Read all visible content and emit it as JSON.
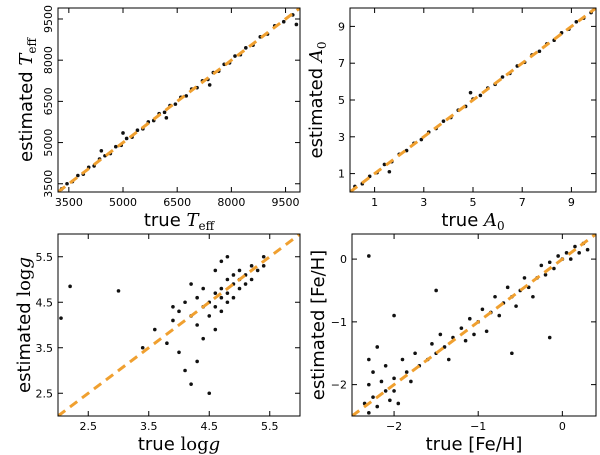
{
  "chart_data": [
    {
      "id": "teff",
      "type": "scatter",
      "xlabel": "true T_eff",
      "ylabel": "estimated T_eff",
      "xlabel_text": "true ",
      "ylabel_text": "estimated ",
      "var_symbol": "T",
      "var_sub": "eff",
      "xlim": [
        3200,
        9900
      ],
      "ylim": [
        3200,
        9900
      ],
      "xticks": [
        3500,
        5000,
        6500,
        8000,
        9500
      ],
      "yticks": [
        3500,
        5000,
        6500,
        8000,
        9500
      ],
      "xtick_labels": [
        "3500",
        "5000",
        "6500",
        "8000",
        "9500"
      ],
      "ytick_labels": [
        "3500",
        "5000",
        "6500",
        "8000",
        "9500"
      ],
      "one_to_one_line": true,
      "line_color": "#f0a030",
      "point_color": "#111111",
      "points": [
        [
          3300,
          3310
        ],
        [
          3450,
          3500
        ],
        [
          3600,
          3580
        ],
        [
          3750,
          3800
        ],
        [
          3900,
          3850
        ],
        [
          4050,
          4100
        ],
        [
          4200,
          4150
        ],
        [
          4350,
          4400
        ],
        [
          4500,
          4520
        ],
        [
          4650,
          4600
        ],
        [
          4800,
          4850
        ],
        [
          4950,
          4900
        ],
        [
          5100,
          5150
        ],
        [
          5250,
          5200
        ],
        [
          5400,
          5450
        ],
        [
          5550,
          5500
        ],
        [
          5700,
          5750
        ],
        [
          5850,
          5800
        ],
        [
          6000,
          6050
        ],
        [
          6150,
          6100
        ],
        [
          6300,
          6350
        ],
        [
          6450,
          6400
        ],
        [
          6600,
          6650
        ],
        [
          6750,
          6700
        ],
        [
          6900,
          6950
        ],
        [
          7050,
          7000
        ],
        [
          7200,
          7250
        ],
        [
          7350,
          7300
        ],
        [
          7500,
          7550
        ],
        [
          7650,
          7600
        ],
        [
          7800,
          7850
        ],
        [
          7950,
          7900
        ],
        [
          8100,
          8150
        ],
        [
          8250,
          8200
        ],
        [
          8400,
          8450
        ],
        [
          8600,
          8550
        ],
        [
          8800,
          8850
        ],
        [
          9000,
          8950
        ],
        [
          9200,
          9250
        ],
        [
          9450,
          9400
        ],
        [
          9700,
          9650
        ],
        [
          9800,
          9300
        ],
        [
          5000,
          5350
        ],
        [
          6200,
          5900
        ],
        [
          4400,
          4700
        ],
        [
          7400,
          7100
        ]
      ]
    },
    {
      "id": "a0",
      "type": "scatter",
      "xlabel": "true A_0",
      "ylabel": "estimated A_0",
      "xlabel_text": "true ",
      "ylabel_text": "estimated ",
      "var_symbol": "A",
      "var_sub": "0",
      "xlim": [
        0,
        10
      ],
      "ylim": [
        0,
        10
      ],
      "xticks": [
        1,
        3,
        5,
        7,
        9
      ],
      "yticks": [
        1,
        3,
        5,
        7,
        9
      ],
      "xtick_labels": [
        "1",
        "3",
        "5",
        "7",
        "9"
      ],
      "ytick_labels": [
        "1",
        "3",
        "5",
        "7",
        "9"
      ],
      "one_to_one_line": true,
      "line_color": "#f0a030",
      "point_color": "#111111",
      "points": [
        [
          0.2,
          0.3
        ],
        [
          0.5,
          0.45
        ],
        [
          0.8,
          0.85
        ],
        [
          1.1,
          1.05
        ],
        [
          1.4,
          1.5
        ],
        [
          1.7,
          1.65
        ],
        [
          2.0,
          2.05
        ],
        [
          2.3,
          2.25
        ],
        [
          2.6,
          2.65
        ],
        [
          2.9,
          2.85
        ],
        [
          3.2,
          3.25
        ],
        [
          3.5,
          3.45
        ],
        [
          3.8,
          3.85
        ],
        [
          4.1,
          4.05
        ],
        [
          4.4,
          4.45
        ],
        [
          4.7,
          4.65
        ],
        [
          5.0,
          5.05
        ],
        [
          5.3,
          5.25
        ],
        [
          5.6,
          5.65
        ],
        [
          5.9,
          5.85
        ],
        [
          6.2,
          6.25
        ],
        [
          6.5,
          6.45
        ],
        [
          6.8,
          6.85
        ],
        [
          7.1,
          7.05
        ],
        [
          7.4,
          7.45
        ],
        [
          7.7,
          7.65
        ],
        [
          8.0,
          8.05
        ],
        [
          8.3,
          8.25
        ],
        [
          8.6,
          8.65
        ],
        [
          8.9,
          8.85
        ],
        [
          9.2,
          9.25
        ],
        [
          9.5,
          9.45
        ],
        [
          9.8,
          9.75
        ],
        [
          1.6,
          1.1
        ],
        [
          4.9,
          5.4
        ]
      ]
    },
    {
      "id": "logg",
      "type": "scatter",
      "xlabel": "true log g",
      "ylabel": "estimated log g",
      "xlabel_text": "true ",
      "ylabel_text": "estimated ",
      "var_symbol": "log",
      "var_sub": "g",
      "xlim": [
        2.0,
        6.0
      ],
      "ylim": [
        2.0,
        6.0
      ],
      "xticks": [
        2.5,
        3.5,
        4.5,
        5.5
      ],
      "yticks": [
        2.5,
        3.5,
        4.5,
        5.5
      ],
      "xtick_labels": [
        "2.5",
        "3.5",
        "4.5",
        "5.5"
      ],
      "ytick_labels": [
        "2.5",
        "3.5",
        "4.5",
        "5.5"
      ],
      "one_to_one_line": true,
      "line_color": "#f0a030",
      "point_color": "#111111",
      "points": [
        [
          2.05,
          4.15
        ],
        [
          2.2,
          4.85
        ],
        [
          3.0,
          4.75
        ],
        [
          3.4,
          3.5
        ],
        [
          3.6,
          3.9
        ],
        [
          3.8,
          3.6
        ],
        [
          3.9,
          4.1
        ],
        [
          4.0,
          4.3
        ],
        [
          4.0,
          3.4
        ],
        [
          4.1,
          4.5
        ],
        [
          4.1,
          3.0
        ],
        [
          4.2,
          4.2
        ],
        [
          4.2,
          2.7
        ],
        [
          4.3,
          4.6
        ],
        [
          4.3,
          4.0
        ],
        [
          4.3,
          3.2
        ],
        [
          4.4,
          4.8
        ],
        [
          4.4,
          4.4
        ],
        [
          4.4,
          3.7
        ],
        [
          4.5,
          4.5
        ],
        [
          4.5,
          4.2
        ],
        [
          4.5,
          2.5
        ],
        [
          4.6,
          4.7
        ],
        [
          4.6,
          4.4
        ],
        [
          4.6,
          3.9
        ],
        [
          4.7,
          4.8
        ],
        [
          4.7,
          4.6
        ],
        [
          4.7,
          4.3
        ],
        [
          4.8,
          5.0
        ],
        [
          4.8,
          4.7
        ],
        [
          4.8,
          4.5
        ],
        [
          4.9,
          5.1
        ],
        [
          4.9,
          4.9
        ],
        [
          4.9,
          4.6
        ],
        [
          5.0,
          5.0
        ],
        [
          5.0,
          4.8
        ],
        [
          5.0,
          5.2
        ],
        [
          5.1,
          5.1
        ],
        [
          5.1,
          4.9
        ],
        [
          5.2,
          5.3
        ],
        [
          5.2,
          5.0
        ],
        [
          5.3,
          5.2
        ],
        [
          5.4,
          5.3
        ],
        [
          5.4,
          5.5
        ],
        [
          4.6,
          5.2
        ],
        [
          4.7,
          5.4
        ],
        [
          4.2,
          4.9
        ],
        [
          3.9,
          4.4
        ],
        [
          4.8,
          5.5
        ]
      ]
    },
    {
      "id": "feh",
      "type": "scatter",
      "xlabel": "true [Fe/H]",
      "ylabel": "estimated [Fe/H]",
      "xlabel_text": "true [Fe/H]",
      "ylabel_text": "estimated [Fe/H]",
      "var_symbol": "",
      "var_sub": "",
      "xlim": [
        -2.5,
        0.4
      ],
      "ylim": [
        -2.5,
        0.4
      ],
      "xticks": [
        -2,
        -1,
        0
      ],
      "yticks": [
        -2,
        -1,
        0
      ],
      "xtick_labels": [
        "−2",
        "−1",
        "0"
      ],
      "ytick_labels": [
        "−2",
        "−1",
        "0"
      ],
      "one_to_one_line": true,
      "line_color": "#f0a030",
      "point_color": "#111111",
      "points": [
        [
          -2.35,
          -2.3
        ],
        [
          -2.3,
          -2.0
        ],
        [
          -2.3,
          -1.6
        ],
        [
          -2.3,
          -2.45
        ],
        [
          -2.25,
          -1.8
        ],
        [
          -2.25,
          -2.2
        ],
        [
          -2.2,
          -1.4
        ],
        [
          -2.2,
          -2.35
        ],
        [
          -2.15,
          -1.95
        ],
        [
          -2.1,
          -2.1
        ],
        [
          -2.1,
          -1.7
        ],
        [
          -2.05,
          -2.25
        ],
        [
          -2.0,
          -1.9
        ],
        [
          -2.0,
          -2.1
        ],
        [
          -1.95,
          -2.3
        ],
        [
          -1.9,
          -1.6
        ],
        [
          -1.85,
          -1.8
        ],
        [
          -1.8,
          -1.95
        ],
        [
          -1.75,
          -1.5
        ],
        [
          -1.7,
          -1.7
        ],
        [
          -1.6,
          -1.6
        ],
        [
          -1.55,
          -1.35
        ],
        [
          -1.5,
          -1.5
        ],
        [
          -1.45,
          -1.2
        ],
        [
          -1.4,
          -1.4
        ],
        [
          -1.35,
          -1.6
        ],
        [
          -1.3,
          -1.25
        ],
        [
          -1.2,
          -1.1
        ],
        [
          -1.15,
          -1.3
        ],
        [
          -1.1,
          -0.95
        ],
        [
          -1.05,
          -1.2
        ],
        [
          -1.0,
          -1.0
        ],
        [
          -0.95,
          -0.8
        ],
        [
          -0.9,
          -1.15
        ],
        [
          -0.85,
          -0.85
        ],
        [
          -0.8,
          -0.6
        ],
        [
          -0.75,
          -0.9
        ],
        [
          -0.7,
          -0.7
        ],
        [
          -0.65,
          -0.45
        ],
        [
          -0.6,
          -0.6
        ],
        [
          -0.55,
          -0.75
        ],
        [
          -0.5,
          -0.5
        ],
        [
          -0.45,
          -0.3
        ],
        [
          -0.4,
          -0.45
        ],
        [
          -0.35,
          -0.6
        ],
        [
          -0.3,
          -0.3
        ],
        [
          -0.25,
          -0.1
        ],
        [
          -0.2,
          -0.25
        ],
        [
          -0.15,
          -0.05
        ],
        [
          -0.1,
          -0.15
        ],
        [
          -0.05,
          0.05
        ],
        [
          0.0,
          0.0
        ],
        [
          0.05,
          0.1
        ],
        [
          0.1,
          0.0
        ],
        [
          0.15,
          0.2
        ],
        [
          0.2,
          0.1
        ],
        [
          0.25,
          0.25
        ],
        [
          0.3,
          0.15
        ],
        [
          -2.3,
          0.05
        ],
        [
          -2.0,
          -0.9
        ],
        [
          -1.5,
          -0.5
        ],
        [
          -0.15,
          -1.25
        ],
        [
          -0.6,
          -1.5
        ]
      ]
    }
  ]
}
